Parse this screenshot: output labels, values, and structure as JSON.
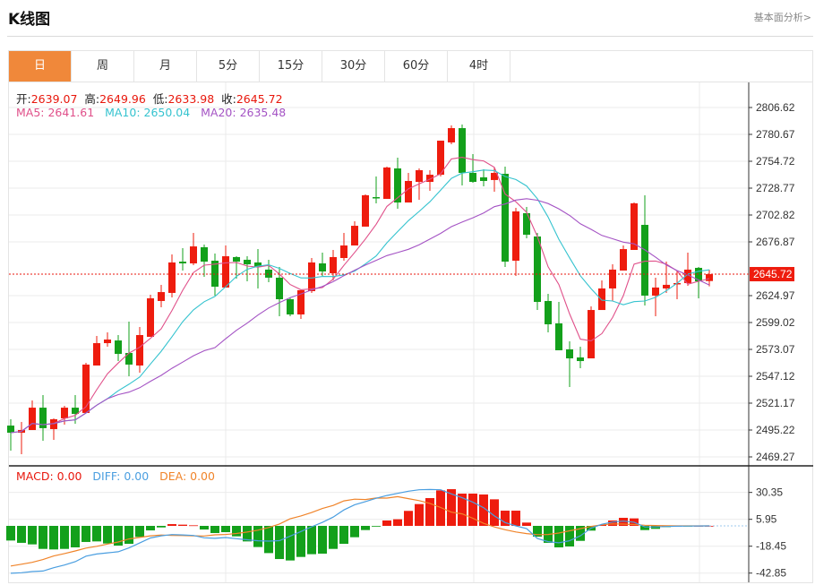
{
  "header": {
    "title": "K线图",
    "analysis_link": "基本面分析>"
  },
  "tabs": [
    {
      "label": "日",
      "active": true
    },
    {
      "label": "周"
    },
    {
      "label": "月"
    },
    {
      "label": "5分"
    },
    {
      "label": "15分"
    },
    {
      "label": "30分"
    },
    {
      "label": "60分"
    },
    {
      "label": "4时"
    }
  ],
  "ohlc_legend": {
    "open_label": "开:",
    "open": "2639.07",
    "high_label": "高:",
    "high": "2649.96",
    "low_label": "低:",
    "low": "2633.98",
    "close_label": "收:",
    "close": "2645.72"
  },
  "ma_legend": {
    "ma5": "MA5: 2641.61",
    "ma10": "MA10: 2650.04",
    "ma20": "MA20: 2635.48"
  },
  "macd_legend": {
    "macd": "MACD: 0.00",
    "diff": "DIFF: 0.00",
    "dea": "DEA: 0.00"
  },
  "current_price": "2645.72",
  "colors": {
    "up": "#ee1c0e",
    "down": "#13a01b",
    "ma5": "#e0508a",
    "ma10": "#35c3cf",
    "ma20": "#a453c4",
    "diff": "#4a9ee0",
    "dea": "#f0842a",
    "accent": "#f0883a"
  },
  "chart_data": [
    {
      "type": "candlestick",
      "ylim": [
        2469.27,
        2806.62
      ],
      "yticks": [
        "2806.62",
        "2780.67",
        "2754.72",
        "2728.77",
        "2702.82",
        "2676.87",
        "2624.97",
        "2599.02",
        "2573.07",
        "2547.12",
        "2521.17",
        "2495.22",
        "2469.27"
      ],
      "grid": true,
      "ohlc": [
        [
          2499.5,
          2505.6,
          2475.3,
          2492.6
        ],
        [
          2492.6,
          2503.0,
          2471.9,
          2495.2
        ],
        [
          2495.2,
          2523.8,
          2495.2,
          2516.8
        ],
        [
          2516.8,
          2529.0,
          2484.8,
          2497.0
        ],
        [
          2496.1,
          2506.5,
          2485.7,
          2505.6
        ],
        [
          2506.5,
          2518.6,
          2500.4,
          2516.8
        ],
        [
          2516.8,
          2529.0,
          2501.3,
          2510.8
        ],
        [
          2511.7,
          2560.1,
          2511.7,
          2558.4
        ],
        [
          2557.5,
          2586.0,
          2557.5,
          2579.1
        ],
        [
          2579.1,
          2589.5,
          2575.7,
          2582.6
        ],
        [
          2581.7,
          2586.9,
          2561.8,
          2568.7
        ],
        [
          2569.6,
          2599.9,
          2547.1,
          2558.4
        ],
        [
          2557.5,
          2594.7,
          2550.6,
          2586.9
        ],
        [
          2585.2,
          2625.8,
          2585.2,
          2622.4
        ],
        [
          2619.8,
          2635.4,
          2613.7,
          2628.4
        ],
        [
          2627.6,
          2664.8,
          2623.2,
          2657.0
        ],
        [
          2657.8,
          2670.8,
          2649.2,
          2656.1
        ],
        [
          2656.1,
          2685.5,
          2654.4,
          2672.5
        ],
        [
          2671.7,
          2674.3,
          2643.1,
          2657.8
        ],
        [
          2658.7,
          2665.6,
          2625.0,
          2633.6
        ],
        [
          2632.8,
          2673.4,
          2632.8,
          2663.0
        ],
        [
          2662.2,
          2663.0,
          2641.4,
          2657.8
        ],
        [
          2659.6,
          2663.0,
          2638.8,
          2655.2
        ],
        [
          2657.0,
          2669.9,
          2631.9,
          2652.6
        ],
        [
          2650.1,
          2659.6,
          2637.9,
          2642.3
        ],
        [
          2642.3,
          2652.6,
          2605.1,
          2621.5
        ],
        [
          2621.5,
          2623.2,
          2605.1,
          2606.8
        ],
        [
          2606.8,
          2630.2,
          2602.5,
          2630.2
        ],
        [
          2629.3,
          2661.3,
          2627.6,
          2657.0
        ],
        [
          2656.1,
          2666.5,
          2644.0,
          2648.3
        ],
        [
          2646.6,
          2669.1,
          2639.7,
          2662.2
        ],
        [
          2661.3,
          2685.5,
          2658.7,
          2673.4
        ],
        [
          2673.4,
          2696.8,
          2673.4,
          2692.4
        ],
        [
          2691.6,
          2722.7,
          2691.6,
          2721.9
        ],
        [
          2720.1,
          2740.0,
          2714.1,
          2719.3
        ],
        [
          2718.4,
          2749.5,
          2718.4,
          2748.7
        ],
        [
          2747.8,
          2758.2,
          2708.9,
          2714.9
        ],
        [
          2714.9,
          2743.5,
          2714.9,
          2735.7
        ],
        [
          2734.8,
          2747.8,
          2717.5,
          2746.1
        ],
        [
          2734.8,
          2746.1,
          2726.2,
          2741.7
        ],
        [
          2741.7,
          2774.6,
          2740.0,
          2774.6
        ],
        [
          2772.9,
          2789.3,
          2771.2,
          2786.7
        ],
        [
          2786.7,
          2790.2,
          2731.4,
          2743.5
        ],
        [
          2743.5,
          2761.6,
          2734.0,
          2734.8
        ],
        [
          2739.2,
          2746.9,
          2730.5,
          2735.7
        ],
        [
          2736.6,
          2748.7,
          2725.3,
          2743.5
        ],
        [
          2742.6,
          2749.5,
          2652.6,
          2657.8
        ],
        [
          2658.7,
          2709.7,
          2644.0,
          2706.3
        ],
        [
          2704.6,
          2710.6,
          2680.3,
          2683.8
        ],
        [
          2682.1,
          2685.5,
          2611.1,
          2618.9
        ],
        [
          2619.8,
          2626.7,
          2589.5,
          2597.3
        ],
        [
          2598.2,
          2618.9,
          2572.2,
          2572.2
        ],
        [
          2573.1,
          2580.9,
          2536.7,
          2564.4
        ],
        [
          2565.3,
          2575.7,
          2554.9,
          2561.8
        ],
        [
          2564.4,
          2614.6,
          2564.4,
          2611.1
        ],
        [
          2611.1,
          2639.7,
          2611.1,
          2631.9
        ],
        [
          2631.9,
          2655.2,
          2619.8,
          2650.1
        ],
        [
          2649.2,
          2673.4,
          2649.2,
          2669.9
        ],
        [
          2669.1,
          2714.9,
          2669.1,
          2714.1
        ],
        [
          2693.3,
          2721.9,
          2615.5,
          2625.0
        ],
        [
          2625.0,
          2642.3,
          2605.1,
          2632.8
        ],
        [
          2631.9,
          2657.8,
          2627.6,
          2635.4
        ],
        [
          2636.2,
          2649.2,
          2621.5,
          2637.1
        ],
        [
          2637.1,
          2666.5,
          2634.5,
          2650.1
        ],
        [
          2651.8,
          2652.6,
          2622.4,
          2638.8
        ],
        [
          2639.07,
          2649.96,
          2633.98,
          2645.72
        ]
      ],
      "moving_averages": [
        5,
        10,
        20
      ]
    },
    {
      "type": "bar+line",
      "name": "MACD",
      "ylim": [
        -50,
        42
      ],
      "yticks": [
        "30.35",
        "5.95",
        "-18.45",
        "-42.85"
      ],
      "macd": [
        -13.3,
        -15.4,
        -16.8,
        -20.9,
        -21.4,
        -20.9,
        -19.5,
        -14.6,
        -14.1,
        -16.0,
        -17.9,
        -16.3,
        -10.0,
        -4.1,
        -1.4,
        1.6,
        1.1,
        0.5,
        -3.3,
        -6.5,
        -5.7,
        -9.5,
        -14.1,
        -19.2,
        -24.7,
        -30.1,
        -31.4,
        -28.2,
        -25.7,
        -25.2,
        -20.9,
        -16.3,
        -10.3,
        -3.8,
        -0.5,
        4.9,
        6.0,
        13.6,
        19.8,
        25.2,
        32.2,
        33.3,
        29.3,
        29.3,
        28.5,
        24.1,
        13.8,
        13.8,
        3.0,
        -9.8,
        -15.4,
        -19.5,
        -18.7,
        -13.6,
        -4.3,
        0.8,
        4.9,
        7.3,
        6.8,
        -3.8,
        -2.7,
        -1.1,
        -0.5,
        -0.3,
        0,
        0
      ],
      "diff": [
        -43,
        -42.5,
        -41.5,
        -41,
        -38,
        -35.5,
        -32.5,
        -27.5,
        -25.5,
        -24.5,
        -23.5,
        -20,
        -15.5,
        -11,
        -9,
        -7.9,
        -8.2,
        -8.7,
        -10.8,
        -11.3,
        -10.6,
        -11.6,
        -12.6,
        -13.5,
        -13.8,
        -13.4,
        -9.3,
        -5.1,
        -0.8,
        3.2,
        8,
        14.5,
        19.2,
        22,
        25,
        27.6,
        29.5,
        31.5,
        32.8,
        33,
        32.8,
        29,
        25.5,
        21.5,
        16.5,
        9,
        3,
        0,
        -2.5,
        -11.5,
        -14.3,
        -15.4,
        -13.5,
        -9,
        -2,
        1.5,
        3.5,
        4.3,
        3.3,
        -1,
        -1,
        -0.6,
        -0.3,
        -0.2,
        -0.1,
        0
      ],
      "dea": [
        -36.4,
        -34.8,
        -33.1,
        -30.6,
        -27.3,
        -25.1,
        -22.8,
        -20.2,
        -18.5,
        -16.5,
        -14.6,
        -11.9,
        -10.5,
        -9.0,
        -8.3,
        -8.7,
        -8.8,
        -9.0,
        -9.2,
        -8.1,
        -7.8,
        -6.9,
        -5.6,
        -3.9,
        -1.5,
        1.7,
        6.4,
        9.0,
        12.1,
        15.8,
        18.5,
        22.7,
        24.2,
        23.9,
        25.3,
        25.2,
        26.5,
        24.7,
        22.9,
        20.4,
        16.7,
        12.4,
        10.9,
        6.9,
        2.3,
        -1,
        -3.5,
        -5.5,
        -7,
        -8,
        -7.8,
        -6.5,
        -4.5,
        -2.5,
        -0.5,
        1,
        1.8,
        1.6,
        1.2,
        0.6,
        0.3,
        0.1,
        0,
        0,
        0,
        0
      ]
    }
  ]
}
